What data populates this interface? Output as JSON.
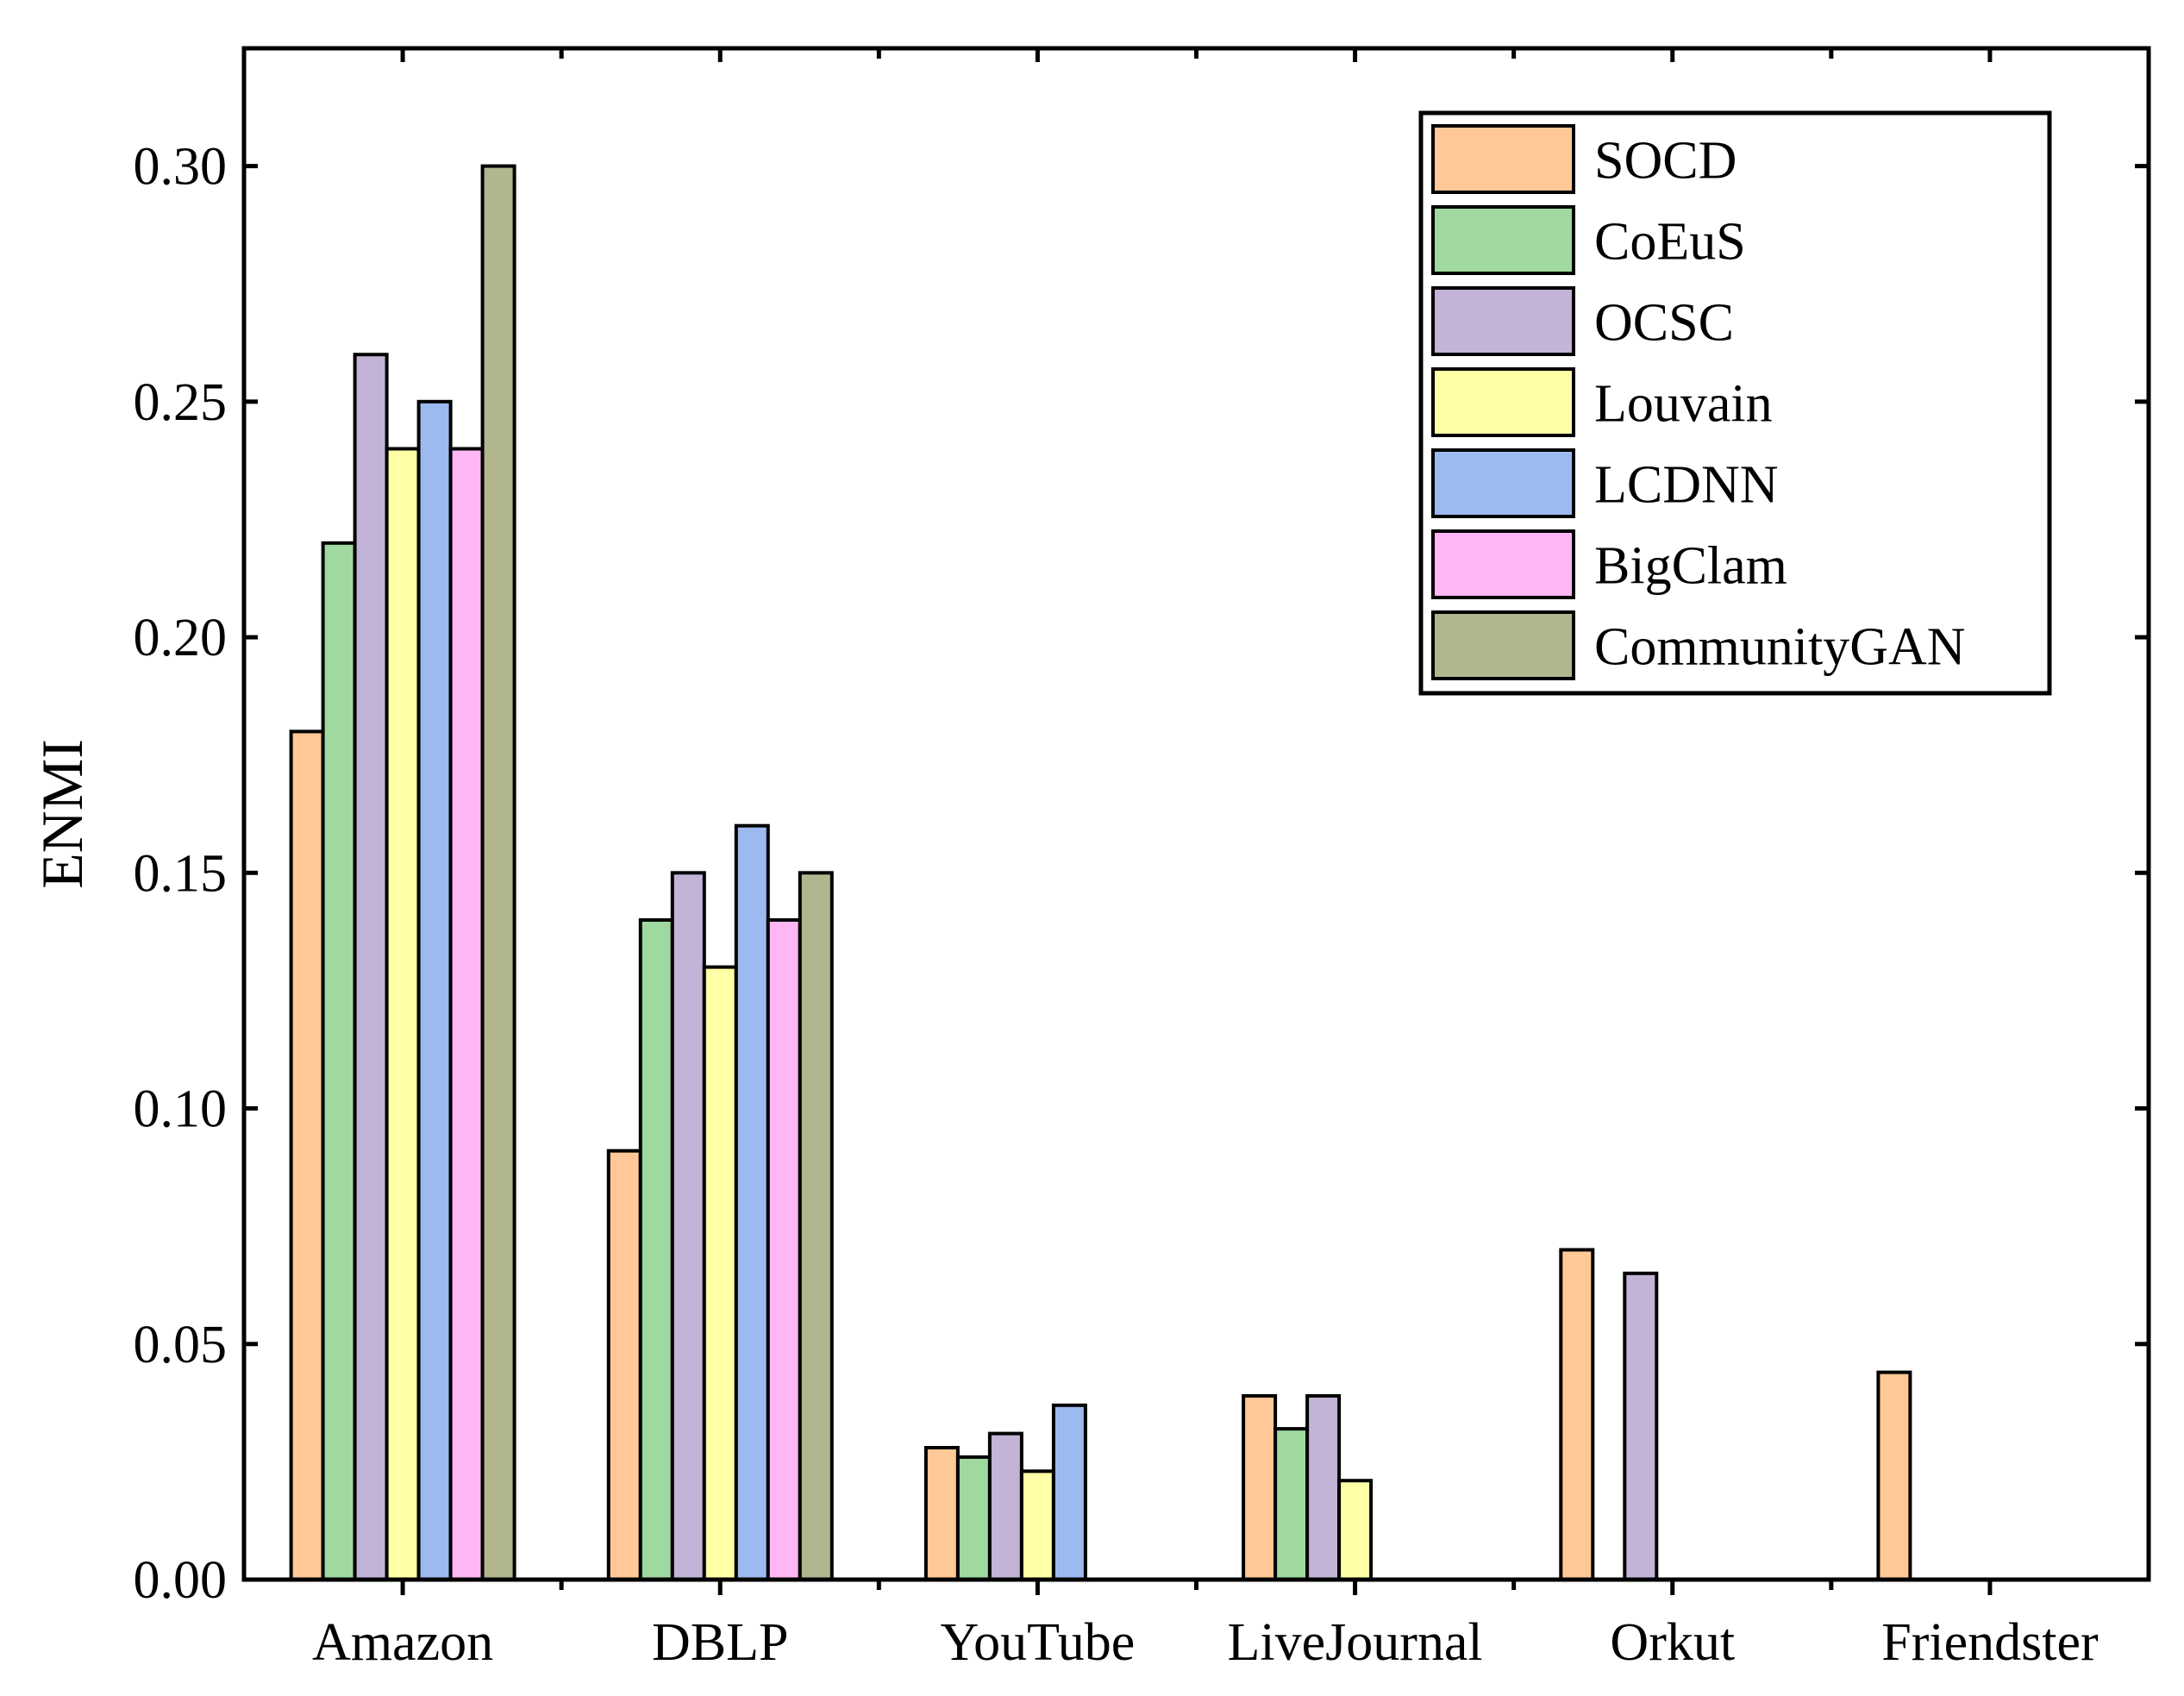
{
  "chart_data": {
    "type": "bar",
    "title": "",
    "xlabel": "",
    "ylabel": "ENMI",
    "ylim": [
      0,
      0.325
    ],
    "yticks": [
      "0.00",
      "0.05",
      "0.10",
      "0.15",
      "0.20",
      "0.25",
      "0.30"
    ],
    "grid": false,
    "legend_position": "top-right",
    "categories": [
      "Amazon",
      "DBLP",
      "YouTube",
      "LiveJournal",
      "Orkut",
      "Friendster"
    ],
    "series": [
      {
        "name": "SOCD",
        "color": "#FFC896",
        "values": [
          0.18,
          0.091,
          0.028,
          0.039,
          0.07,
          0.044
        ]
      },
      {
        "name": "CoEuS",
        "color": "#9FD99F",
        "values": [
          0.22,
          0.14,
          0.026,
          0.032,
          null,
          null
        ]
      },
      {
        "name": "OCSC",
        "color": "#C2B3D7",
        "values": [
          0.26,
          0.15,
          0.031,
          0.039,
          0.065,
          null
        ]
      },
      {
        "name": "Louvain",
        "color": "#FFFFA6",
        "values": [
          0.24,
          0.13,
          0.023,
          0.021,
          null,
          null
        ]
      },
      {
        "name": "LCDNN",
        "color": "#9DBAF0",
        "values": [
          0.25,
          0.16,
          0.037,
          null,
          null,
          null
        ]
      },
      {
        "name": "BigClam",
        "color": "#FFB6F5",
        "values": [
          0.24,
          0.14,
          null,
          null,
          null,
          null
        ]
      },
      {
        "name": "CommunityGAN",
        "color": "#B2B68F",
        "values": [
          0.3,
          0.15,
          null,
          null,
          null,
          null
        ]
      }
    ]
  }
}
